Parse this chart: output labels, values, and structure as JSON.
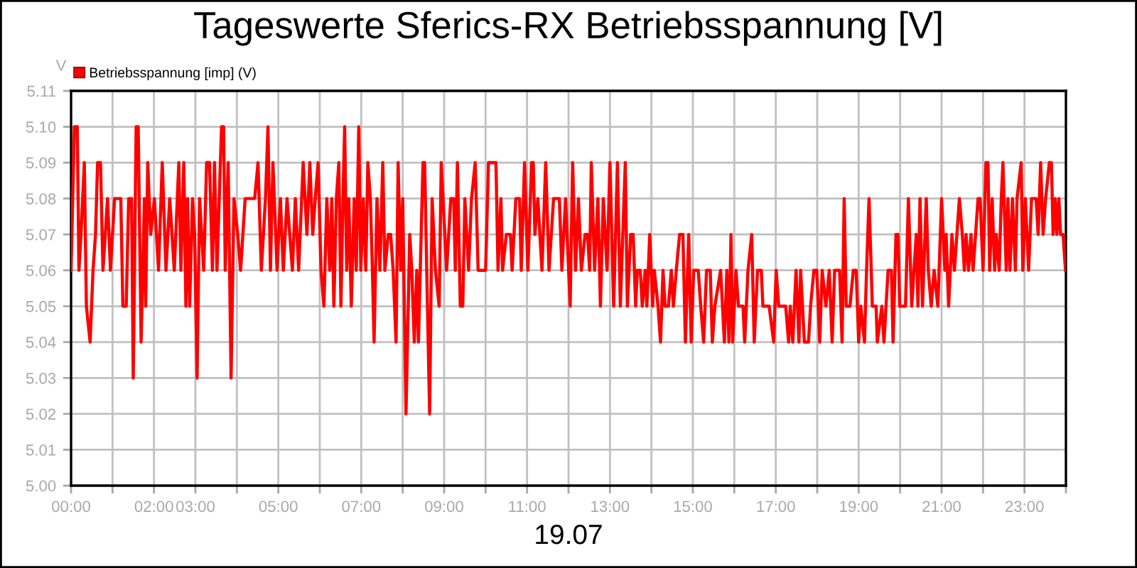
{
  "chart_data": {
    "type": "line",
    "title": "Tageswerte Sferics-RX Betriebsspannung [V]",
    "xlabel": "19.07",
    "ylabel": "V",
    "xlim": [
      0,
      24
    ],
    "ylim": [
      5.0,
      5.11
    ],
    "xticks": [
      {
        "value": 0,
        "label": "00:00"
      },
      {
        "value": 1,
        "label": null
      },
      {
        "value": 2,
        "label": "02:00"
      },
      {
        "value": 3,
        "label": "03:00"
      },
      {
        "value": 4,
        "label": null
      },
      {
        "value": 5,
        "label": "05:00"
      },
      {
        "value": 6,
        "label": null
      },
      {
        "value": 7,
        "label": "07:00"
      },
      {
        "value": 8,
        "label": null
      },
      {
        "value": 9,
        "label": "09:00"
      },
      {
        "value": 10,
        "label": null
      },
      {
        "value": 11,
        "label": "11:00"
      },
      {
        "value": 12,
        "label": null
      },
      {
        "value": 13,
        "label": "13:00"
      },
      {
        "value": 14,
        "label": null
      },
      {
        "value": 15,
        "label": "15:00"
      },
      {
        "value": 16,
        "label": null
      },
      {
        "value": 17,
        "label": "17:00"
      },
      {
        "value": 18,
        "label": null
      },
      {
        "value": 19,
        "label": "19:00"
      },
      {
        "value": 20,
        "label": null
      },
      {
        "value": 21,
        "label": "21:00"
      },
      {
        "value": 22,
        "label": null
      },
      {
        "value": 23,
        "label": "23:00"
      },
      {
        "value": 24,
        "label": null
      }
    ],
    "yticks": [
      {
        "value": 5.0,
        "label": "5.00"
      },
      {
        "value": 5.01,
        "label": "5.01"
      },
      {
        "value": 5.02,
        "label": "5.02"
      },
      {
        "value": 5.03,
        "label": "5.03"
      },
      {
        "value": 5.04,
        "label": "5.04"
      },
      {
        "value": 5.05,
        "label": "5.05"
      },
      {
        "value": 5.06,
        "label": "5.06"
      },
      {
        "value": 5.07,
        "label": "5.07"
      },
      {
        "value": 5.08,
        "label": "5.08"
      },
      {
        "value": 5.09,
        "label": "5.09"
      },
      {
        "value": 5.1,
        "label": "5.10"
      },
      {
        "value": 5.11,
        "label": "5.11"
      }
    ],
    "grid": true,
    "legend": "top left",
    "marker": "none",
    "line_style": "solid",
    "series": [
      {
        "name": "Betriebsspannung [imp] (V)",
        "color": "#ff0000",
        "x": [
          0.0,
          0.08,
          0.15,
          0.19,
          0.24,
          0.32,
          0.37,
          0.46,
          0.53,
          0.59,
          0.64,
          0.71,
          0.77,
          0.88,
          0.95,
          1.05,
          1.2,
          1.25,
          1.33,
          1.39,
          1.46,
          1.5,
          1.57,
          1.62,
          1.69,
          1.77,
          1.8,
          1.85,
          1.92,
          2.01,
          2.11,
          2.2,
          2.29,
          2.38,
          2.49,
          2.6,
          2.65,
          2.72,
          2.77,
          2.81,
          2.86,
          2.93,
          2.98,
          3.04,
          3.1,
          3.2,
          3.27,
          3.34,
          3.41,
          3.46,
          3.52,
          3.63,
          3.68,
          3.72,
          3.79,
          3.86,
          3.93,
          4.02,
          4.09,
          4.2,
          4.34,
          4.43,
          4.51,
          4.59,
          4.69,
          4.75,
          4.81,
          4.87,
          4.97,
          5.05,
          5.12,
          5.21,
          5.34,
          5.41,
          5.49,
          5.6,
          5.69,
          5.76,
          5.83,
          5.89,
          5.96,
          6.03,
          6.1,
          6.17,
          6.24,
          6.29,
          6.34,
          6.4,
          6.46,
          6.51,
          6.56,
          6.6,
          6.65,
          6.7,
          6.76,
          6.83,
          6.88,
          6.94,
          6.99,
          7.05,
          7.11,
          7.16,
          7.22,
          7.27,
          7.31,
          7.38,
          7.45,
          7.52,
          7.57,
          7.65,
          7.71,
          7.77,
          7.84,
          7.89,
          7.95,
          8.0,
          8.08,
          8.17,
          8.22,
          8.28,
          8.34,
          8.38,
          8.49,
          8.53,
          8.58,
          8.65,
          8.71,
          8.79,
          8.88,
          8.93,
          9.06,
          9.16,
          9.23,
          9.27,
          9.32,
          9.39,
          9.45,
          9.5,
          9.59,
          9.66,
          9.75,
          9.82,
          10.0,
          10.07,
          10.25,
          10.3,
          10.37,
          10.41,
          10.5,
          10.6,
          10.64,
          10.73,
          10.82,
          10.86,
          10.94,
          11.02,
          11.11,
          11.15,
          11.19,
          11.26,
          11.36,
          11.45,
          11.53,
          11.64,
          11.78,
          11.84,
          11.93,
          12.04,
          12.1,
          12.17,
          12.24,
          12.31,
          12.4,
          12.46,
          12.51,
          12.55,
          12.63,
          12.71,
          12.77,
          12.84,
          12.93,
          13.0,
          13.09,
          13.18,
          13.25,
          13.37,
          13.42,
          13.5,
          13.56,
          13.62,
          13.66,
          13.73,
          13.78,
          13.85,
          13.89,
          13.96,
          14.03,
          14.07,
          14.16,
          14.22,
          14.28,
          14.33,
          14.41,
          14.48,
          14.53,
          14.6,
          14.68,
          14.76,
          14.82,
          14.9,
          14.96,
          15.02,
          15.13,
          15.19,
          15.26,
          15.33,
          15.42,
          15.47,
          15.53,
          15.67,
          15.76,
          15.82,
          15.87,
          15.92,
          15.96,
          16.04,
          16.1,
          16.21,
          16.25,
          16.33,
          16.42,
          16.48,
          16.56,
          16.65,
          16.69,
          16.84,
          16.95,
          17.01,
          17.07,
          17.24,
          17.31,
          17.35,
          17.41,
          17.49,
          17.56,
          17.6,
          17.69,
          17.79,
          17.84,
          17.92,
          17.99,
          18.06,
          18.12,
          18.21,
          18.29,
          18.36,
          18.42,
          18.54,
          18.6,
          18.65,
          18.7,
          18.79,
          18.87,
          18.94,
          19.0,
          19.05,
          19.14,
          19.19,
          19.25,
          19.33,
          19.42,
          19.45,
          19.56,
          19.61,
          19.71,
          19.79,
          19.83,
          19.9,
          19.95,
          19.99,
          20.13,
          20.2,
          20.28,
          20.39,
          20.43,
          20.48,
          20.54,
          20.63,
          20.68,
          20.75,
          20.82,
          20.91,
          21.0,
          21.08,
          21.11,
          21.17,
          21.25,
          21.31,
          21.43,
          21.5,
          21.55,
          21.59,
          21.65,
          21.71,
          21.76,
          21.88,
          21.93,
          22.0,
          22.07,
          22.12,
          22.16,
          22.22,
          22.28,
          22.32,
          22.39,
          22.44,
          22.48,
          22.56,
          22.6,
          22.65,
          22.71,
          22.78,
          22.82,
          22.92,
          22.96,
          23.02,
          23.1,
          23.17,
          23.28,
          23.33,
          23.39,
          23.45,
          23.51,
          23.6,
          23.65,
          23.69,
          23.74,
          23.78,
          23.83,
          23.87,
          23.93,
          23.99
        ],
        "values": [
          5.06,
          5.1,
          5.1,
          5.06,
          5.07,
          5.09,
          5.05,
          5.04,
          5.06,
          5.07,
          5.09,
          5.09,
          5.06,
          5.08,
          5.06,
          5.08,
          5.08,
          5.05,
          5.05,
          5.08,
          5.08,
          5.03,
          5.1,
          5.1,
          5.04,
          5.08,
          5.05,
          5.09,
          5.07,
          5.08,
          5.06,
          5.09,
          5.06,
          5.08,
          5.06,
          5.09,
          5.06,
          5.09,
          5.05,
          5.08,
          5.05,
          5.08,
          5.07,
          5.03,
          5.08,
          5.06,
          5.09,
          5.09,
          5.06,
          5.09,
          5.06,
          5.1,
          5.1,
          5.06,
          5.09,
          5.03,
          5.08,
          5.07,
          5.06,
          5.08,
          5.08,
          5.08,
          5.09,
          5.06,
          5.08,
          5.1,
          5.06,
          5.09,
          5.06,
          5.08,
          5.06,
          5.08,
          5.06,
          5.08,
          5.06,
          5.09,
          5.07,
          5.09,
          5.07,
          5.08,
          5.09,
          5.06,
          5.05,
          5.08,
          5.06,
          5.08,
          5.05,
          5.08,
          5.09,
          5.05,
          5.08,
          5.1,
          5.06,
          5.08,
          5.05,
          5.08,
          5.06,
          5.1,
          5.06,
          5.08,
          5.06,
          5.09,
          5.08,
          5.06,
          5.04,
          5.08,
          5.06,
          5.09,
          5.06,
          5.07,
          5.07,
          5.06,
          5.04,
          5.09,
          5.06,
          5.08,
          5.02,
          5.07,
          5.06,
          5.04,
          5.06,
          5.04,
          5.09,
          5.09,
          5.06,
          5.02,
          5.08,
          5.06,
          5.05,
          5.09,
          5.06,
          5.08,
          5.08,
          5.06,
          5.09,
          5.05,
          5.05,
          5.08,
          5.06,
          5.08,
          5.09,
          5.06,
          5.06,
          5.09,
          5.09,
          5.06,
          5.08,
          5.06,
          5.07,
          5.07,
          5.06,
          5.08,
          5.08,
          5.06,
          5.09,
          5.06,
          5.09,
          5.09,
          5.07,
          5.08,
          5.06,
          5.09,
          5.06,
          5.08,
          5.08,
          5.06,
          5.08,
          5.05,
          5.09,
          5.06,
          5.08,
          5.06,
          5.07,
          5.07,
          5.06,
          5.09,
          5.06,
          5.08,
          5.05,
          5.08,
          5.06,
          5.09,
          5.05,
          5.09,
          5.05,
          5.09,
          5.05,
          5.07,
          5.07,
          5.05,
          5.06,
          5.06,
          5.05,
          5.06,
          5.05,
          5.07,
          5.05,
          5.06,
          5.05,
          5.04,
          5.06,
          5.05,
          5.05,
          5.06,
          5.05,
          5.06,
          5.07,
          5.07,
          5.04,
          5.07,
          5.04,
          5.06,
          5.06,
          5.05,
          5.04,
          5.06,
          5.06,
          5.04,
          5.05,
          5.06,
          5.04,
          5.06,
          5.04,
          5.07,
          5.04,
          5.06,
          5.05,
          5.05,
          5.04,
          5.06,
          5.07,
          5.04,
          5.06,
          5.06,
          5.05,
          5.05,
          5.04,
          5.06,
          5.05,
          5.05,
          5.04,
          5.05,
          5.04,
          5.06,
          5.04,
          5.06,
          5.04,
          5.04,
          5.05,
          5.06,
          5.06,
          5.04,
          5.06,
          5.05,
          5.06,
          5.04,
          5.06,
          5.06,
          5.04,
          5.08,
          5.05,
          5.05,
          5.06,
          5.06,
          5.04,
          5.05,
          5.04,
          5.06,
          5.08,
          5.05,
          5.05,
          5.04,
          5.05,
          5.04,
          5.06,
          5.06,
          5.04,
          5.07,
          5.07,
          5.05,
          5.05,
          5.08,
          5.05,
          5.07,
          5.05,
          5.08,
          5.05,
          5.08,
          5.06,
          5.05,
          5.06,
          5.05,
          5.08,
          5.06,
          5.07,
          5.05,
          5.07,
          5.06,
          5.08,
          5.07,
          5.06,
          5.07,
          5.06,
          5.07,
          5.06,
          5.08,
          5.08,
          5.06,
          5.09,
          5.09,
          5.06,
          5.08,
          5.06,
          5.07,
          5.06,
          5.08,
          5.09,
          5.06,
          5.08,
          5.06,
          5.08,
          5.06,
          5.08,
          5.09,
          5.06,
          5.08,
          5.06,
          5.08,
          5.08,
          5.07,
          5.09,
          5.07,
          5.08,
          5.09,
          5.09,
          5.07,
          5.08,
          5.07,
          5.08,
          5.07,
          5.07,
          5.06
        ]
      }
    ]
  }
}
